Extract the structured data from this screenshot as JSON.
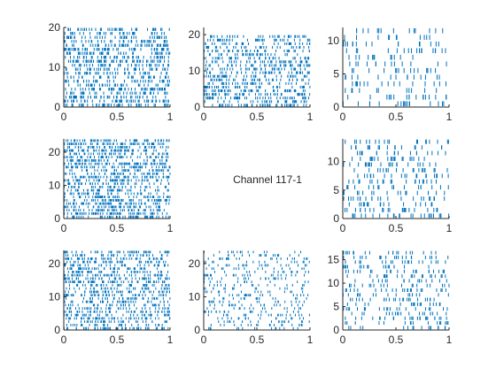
{
  "figure": {
    "center_label": "Channel 117-1",
    "spike_color": "#0072BD",
    "axis_color": "#262626"
  },
  "chart_data": [
    {
      "type": "raster",
      "grid_position": "row1-col1",
      "trials": 20,
      "xlim": [
        0,
        1
      ],
      "ylim": [
        0,
        20
      ],
      "xticks": [
        0,
        0.5,
        1
      ],
      "yticks": [
        0,
        10,
        20
      ],
      "xtick_labels": [
        "0",
        "0.5",
        "1"
      ],
      "ytick_labels": [
        "0",
        "10",
        "20"
      ],
      "approx_spikes_per_trial": 45
    },
    {
      "type": "raster",
      "grid_position": "row1-col2",
      "trials": 20,
      "xlim": [
        0,
        1
      ],
      "ylim": [
        0,
        22
      ],
      "xticks": [
        0,
        0.5,
        1
      ],
      "yticks": [
        0,
        10,
        20
      ],
      "xtick_labels": [
        "0",
        "0.5",
        "1"
      ],
      "ytick_labels": [
        "0",
        "10",
        "20"
      ],
      "approx_spikes_per_trial": 40
    },
    {
      "type": "raster",
      "grid_position": "row1-col3",
      "trials": 12,
      "xlim": [
        0,
        1
      ],
      "ylim": [
        0,
        12
      ],
      "xticks": [
        0,
        0.5,
        1
      ],
      "yticks": [
        0,
        5,
        10
      ],
      "xtick_labels": [
        "0",
        "0.5",
        "1"
      ],
      "ytick_labels": [
        "0",
        "5",
        "10"
      ],
      "approx_spikes_per_trial": 15
    },
    {
      "type": "raster",
      "grid_position": "row2-col1",
      "trials": 24,
      "xlim": [
        0,
        1
      ],
      "ylim": [
        0,
        24
      ],
      "xticks": [
        0,
        0.5,
        1
      ],
      "yticks": [
        0,
        10,
        20
      ],
      "xtick_labels": [
        "0",
        "0.5",
        "1"
      ],
      "ytick_labels": [
        "0",
        "10",
        "20"
      ],
      "approx_spikes_per_trial": 48
    },
    {
      "type": "raster",
      "grid_position": "row2-col3",
      "trials": 14,
      "xlim": [
        0,
        1
      ],
      "ylim": [
        0,
        14
      ],
      "xticks": [
        0,
        0.5,
        1
      ],
      "yticks": [
        0,
        5,
        10
      ],
      "xtick_labels": [
        "0",
        "0.5",
        "1"
      ],
      "ytick_labels": [
        "0",
        "5",
        "10"
      ],
      "approx_spikes_per_trial": 20
    },
    {
      "type": "raster",
      "grid_position": "row3-col1",
      "trials": 24,
      "xlim": [
        0,
        1
      ],
      "ylim": [
        0,
        24
      ],
      "xticks": [
        0,
        0.5,
        1
      ],
      "yticks": [
        0,
        10,
        20
      ],
      "xtick_labels": [
        "0",
        "0.5",
        "1"
      ],
      "ytick_labels": [
        "0",
        "10",
        "20"
      ],
      "approx_spikes_per_trial": 42
    },
    {
      "type": "raster",
      "grid_position": "row3-col2",
      "trials": 24,
      "xlim": [
        0,
        1
      ],
      "ylim": [
        0,
        24
      ],
      "xticks": [
        0,
        0.5,
        1
      ],
      "yticks": [
        0,
        10,
        20
      ],
      "xtick_labels": [
        "0",
        "0.5",
        "1"
      ],
      "ytick_labels": [
        "0",
        "10",
        "20"
      ],
      "approx_spikes_per_trial": 18
    },
    {
      "type": "raster",
      "grid_position": "row3-col3",
      "trials": 17,
      "xlim": [
        0,
        1
      ],
      "ylim": [
        0,
        17
      ],
      "xticks": [
        0,
        0.5,
        1
      ],
      "yticks": [
        0,
        5,
        10,
        15
      ],
      "xtick_labels": [
        "0",
        "0.5",
        "1"
      ],
      "ytick_labels": [
        "0",
        "5",
        "10",
        "15"
      ],
      "approx_spikes_per_trial": 20
    }
  ]
}
